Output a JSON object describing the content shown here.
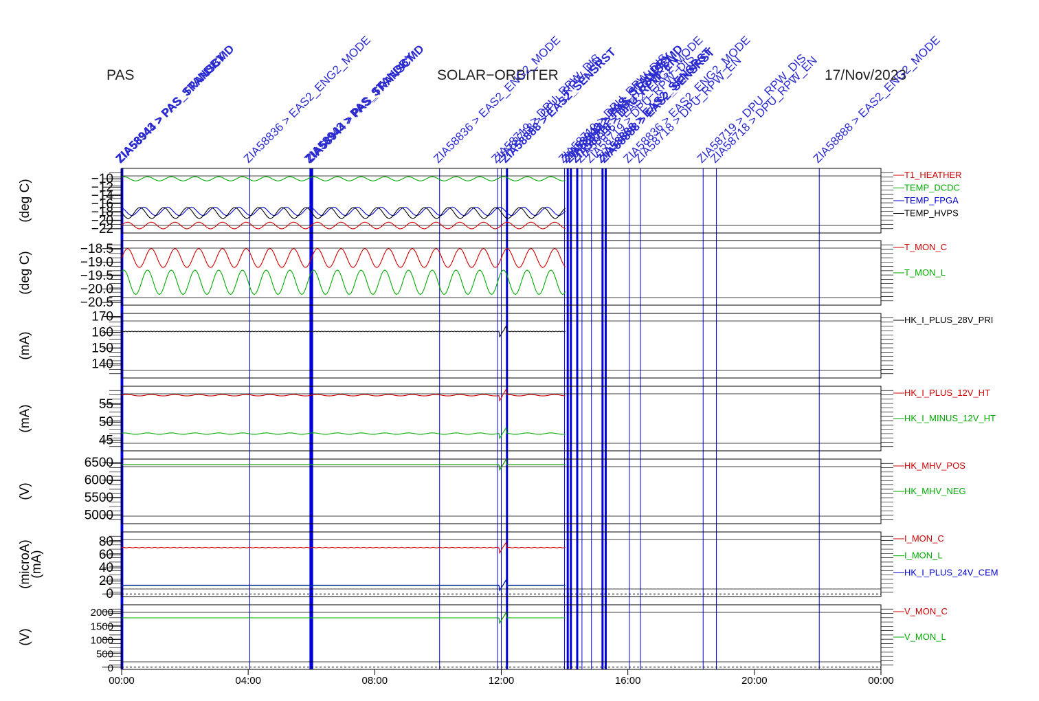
{
  "header": {
    "left": "PAS",
    "center": "SOLAR−ORBITER",
    "right": "17/Nov/2023"
  },
  "chart_data": {
    "type": "line",
    "x_axis": {
      "range_hours": [
        0,
        24
      ],
      "ticks": [
        "00:00",
        "04:00",
        "08:00",
        "12:00",
        "16:00",
        "20:00",
        "00:00"
      ]
    },
    "data_end_hour": 14.05,
    "events": [
      {
        "hour": 0.0,
        "label": "ZIA58943 > PAS_STANDBY",
        "bold": true
      },
      {
        "hour": 0.02,
        "label": "ZIA58944 > PAS_TRANSCMD",
        "bold": true
      },
      {
        "hour": 4.05,
        "label": "ZIA58836 > EAS2_ENG2_MODE",
        "bold": false
      },
      {
        "hour": 5.97,
        "label": "ZIA58943 > PAS_STANDBY",
        "bold": true
      },
      {
        "hour": 6.02,
        "label": "ZIA58944 > PAS_TRANSCMD",
        "bold": true
      },
      {
        "hour": 10.05,
        "label": "ZIA58836 > EAS2_ENG2_MODE",
        "bold": false
      },
      {
        "hour": 11.88,
        "label": "ZIA58719 > DPU_RPW_DIS",
        "bold": false
      },
      {
        "hour": 12.0,
        "label": "ZIA58718 > DPU_RPW_EN",
        "bold": false
      },
      {
        "hour": 12.18,
        "label": "ZIA58888 > EAS2_SENSRST",
        "bold": true
      },
      {
        "hour": 14.0,
        "label": "ZIA58719 > DPU_RPW_DIS",
        "bold": false
      },
      {
        "hour": 14.1,
        "label": "ZIA58943 > PAS_STANDBY",
        "bold": true
      },
      {
        "hour": 14.2,
        "label": "ZIA58944 > PAS_TRANSCMD",
        "bold": true
      },
      {
        "hour": 14.4,
        "label": "ZIA58718 > DPU_RPW_EN",
        "bold": true
      },
      {
        "hour": 14.55,
        "label": "ZIA58836 > EAS2_ENG2_MODE",
        "bold": false
      },
      {
        "hour": 14.85,
        "label": "ZIA58719 > DPU_RPW_DIS",
        "bold": false
      },
      {
        "hour": 15.2,
        "label": "ZIA58888 > EAS2_SENSRST",
        "bold": true
      },
      {
        "hour": 15.3,
        "label": "ZIA58888 > EAS2_SENSRST",
        "bold": true
      },
      {
        "hour": 16.05,
        "label": "ZIA58836 > EAS2_ENG2_MODE",
        "bold": false
      },
      {
        "hour": 16.4,
        "label": "ZIA58718 > DPU_RPW_EN",
        "bold": false
      },
      {
        "hour": 18.38,
        "label": "ZIA58719 > DPU_RPW_DIS",
        "bold": false
      },
      {
        "hour": 18.8,
        "label": "ZIA58718 > DPU_RPW_EN",
        "bold": false
      },
      {
        "hour": 22.05,
        "label": "ZIA58888 > EAS2_ENG2_MODE",
        "bold": false
      }
    ],
    "panels": [
      {
        "ylabel": "(deg C)",
        "ylim": [
          -23,
          -7.5
        ],
        "yticks": [
          -10,
          -12,
          -14,
          -16,
          -18,
          -20,
          -22
        ],
        "tick_labels": [
          "−10",
          "−12",
          "−14",
          "−16",
          "−18",
          "−20",
          "−22"
        ],
        "series": [
          {
            "name": "T1_HEATHER",
            "color": "#cc0000",
            "base": -21.2,
            "amp": 0.8,
            "period_h": 0.75
          },
          {
            "name": "TEMP_DCDC",
            "color": "#00aa00",
            "base": -10.0,
            "amp": 0.5,
            "period_h": 0.75
          },
          {
            "name": "TEMP_FPGA",
            "color": "#0000cc",
            "base": -17.8,
            "amp": 1.0,
            "period_h": 0.75
          },
          {
            "name": "TEMP_HVPS",
            "color": "#000000",
            "base": -18.2,
            "amp": 1.3,
            "period_h": 0.75
          }
        ]
      },
      {
        "ylabel": "(deg C)",
        "ylim": [
          -20.6,
          -18.2
        ],
        "yticks": [
          -18.5,
          -19.0,
          -19.5,
          -20.0,
          -20.5
        ],
        "tick_labels": [
          "−18.5",
          "−19.0",
          "−19.5",
          "−20.0",
          "−20.5"
        ],
        "series": [
          {
            "name": "T_MON_C",
            "color": "#cc0000",
            "base": -18.85,
            "amp": 0.35,
            "period_h": 0.75
          },
          {
            "name": "T_MON_L",
            "color": "#00aa00",
            "base": -19.75,
            "amp": 0.45,
            "period_h": 0.75
          }
        ]
      },
      {
        "ylabel": "(mA)",
        "ylim": [
          131,
          172
        ],
        "yticks": [
          170,
          160,
          150,
          140
        ],
        "tick_labels": [
          "170",
          "160",
          "150",
          "140"
        ],
        "series": [
          {
            "name": "HK_I_PLUS_28V_PRI",
            "color": "#000000",
            "base": 160.5,
            "amp": 0.2,
            "period_h": 0.1
          }
        ]
      },
      {
        "ylabel": "(mA)",
        "ylim": [
          42,
          60
        ],
        "yticks": [
          55,
          50,
          45
        ],
        "tick_labels": [
          "55",
          "50",
          "45"
        ],
        "series": [
          {
            "name": "HK_I_PLUS_12V_HT",
            "color": "#cc0000",
            "base": 57.5,
            "amp": 0.2,
            "period_h": 0.75
          },
          {
            "name": "HK_I_MINUS_12V_HT",
            "color": "#00aa00",
            "base": 46.8,
            "amp": 0.2,
            "period_h": 0.75
          }
        ]
      },
      {
        "ylabel": "(V)",
        "ylim": [
          4750,
          6600
        ],
        "yticks": [
          6500,
          6000,
          5500,
          5000
        ],
        "tick_labels": [
          "6500",
          "6000",
          "5500",
          "5000"
        ],
        "series": [
          {
            "name": "HK_MHV_POS",
            "color": "#cc0000",
            "base": 6440,
            "amp": 0,
            "period_h": 1
          },
          {
            "name": "HK_MHV_NEG",
            "color": "#00aa00",
            "base": 6440,
            "amp": 0,
            "period_h": 1
          }
        ]
      },
      {
        "ylabel": "(microA) (mA)",
        "ylim": [
          -4,
          95
        ],
        "yticks": [
          80,
          60,
          40,
          20,
          0
        ],
        "tick_labels": [
          "80",
          "60",
          "40",
          "20",
          "0"
        ],
        "series": [
          {
            "name": "I_MON_C",
            "color": "#cc0000",
            "base": 71,
            "amp": 0.4,
            "period_h": 0.2
          },
          {
            "name": "I_MON_L",
            "color": "#00aa00",
            "base": 13,
            "amp": 0,
            "period_h": 1
          },
          {
            "name": "HK_I_PLUS_24V_CEM",
            "color": "#0000cc",
            "base": 13.5,
            "amp": 0,
            "period_h": 1
          }
        ]
      },
      {
        "ylabel": "(V)",
        "ylim": [
          -80,
          2250
        ],
        "yticks": [
          2000,
          1500,
          1000,
          500,
          0
        ],
        "tick_labels": [
          "2000",
          "1500",
          "1000",
          "500",
          "0"
        ],
        "series": [
          {
            "name": "V_MON_C",
            "color": "#cc0000",
            "base": 1780,
            "amp": 0,
            "period_h": 1
          },
          {
            "name": "V_MON_L",
            "color": "#00aa00",
            "base": 1780,
            "amp": 0,
            "period_h": 1
          }
        ]
      }
    ]
  }
}
